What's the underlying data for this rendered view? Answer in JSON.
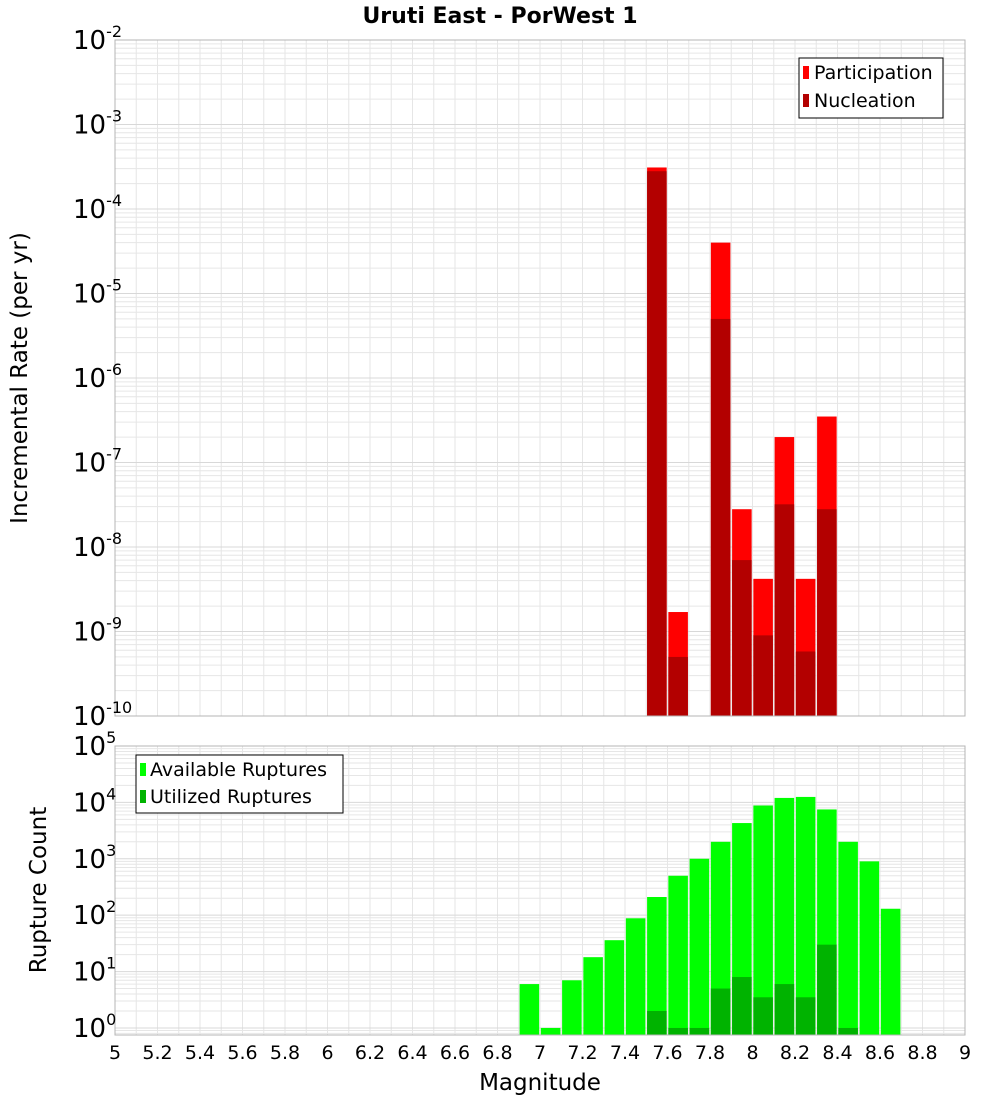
{
  "title": "Uruti East - PorWest 1",
  "colors": {
    "participation": "#ff0000",
    "nucleation": "#b30000",
    "available": "#00ff00",
    "utilized": "#00b300",
    "grid": "#e6e6e6",
    "frame": "#b4b4b4"
  },
  "chart_data": [
    {
      "type": "bar",
      "title": "Uruti East - PorWest 1",
      "ylabel": "Incremental Rate (per yr)",
      "yscale": "log",
      "ylim": [
        1e-10,
        0.01
      ],
      "xlim": [
        5,
        9
      ],
      "grid": true,
      "legend_position": "top-right",
      "x": [
        7.55,
        7.65,
        7.85,
        7.95,
        8.05,
        8.15,
        8.25,
        8.35
      ],
      "series": [
        {
          "name": "Participation",
          "values": [
            0.00031,
            1.7e-09,
            4e-05,
            2.8e-08,
            4.2e-09,
            2e-07,
            4.2e-09,
            3.5e-07
          ]
        },
        {
          "name": "Nucleation",
          "values": [
            0.00028,
            5e-10,
            5e-06,
            7e-09,
            9e-10,
            3.2e-08,
            5.8e-10,
            2.8e-08
          ]
        }
      ]
    },
    {
      "type": "bar",
      "xlabel": "Magnitude",
      "ylabel": "Rupture Count",
      "yscale": "log",
      "ylim": [
        0.75,
        100000
      ],
      "xlim": [
        5,
        9
      ],
      "grid": true,
      "legend_position": "top-left",
      "x": [
        6.95,
        7.05,
        7.15,
        7.25,
        7.35,
        7.45,
        7.55,
        7.65,
        7.75,
        7.85,
        7.95,
        8.05,
        8.15,
        8.25,
        8.35,
        8.45,
        8.55,
        8.65
      ],
      "series": [
        {
          "name": "Available Ruptures",
          "values": [
            6,
            1,
            7,
            18,
            36,
            88,
            210,
            500,
            1000,
            2000,
            4300,
            8800,
            12000,
            12500,
            7500,
            2000,
            900,
            130
          ]
        },
        {
          "name": "Utilized Ruptures",
          "values": [
            0,
            0,
            0,
            0,
            0,
            0,
            2,
            1,
            1,
            5,
            8,
            3.5,
            6,
            3.5,
            30,
            1,
            0,
            0
          ]
        }
      ]
    }
  ],
  "x_ticks": [
    "5",
    "5.2",
    "5.4",
    "5.6",
    "5.8",
    "6",
    "6.2",
    "6.4",
    "6.6",
    "6.8",
    "7",
    "7.2",
    "7.4",
    "7.6",
    "7.8",
    "8",
    "8.2",
    "8.4",
    "8.6",
    "8.8",
    "9"
  ],
  "top_y_ticks": [
    {
      "base": "10",
      "exp": "-2",
      "value": 0.01
    },
    {
      "base": "10",
      "exp": "-3",
      "value": 0.001
    },
    {
      "base": "10",
      "exp": "-4",
      "value": 0.0001
    },
    {
      "base": "10",
      "exp": "-5",
      "value": 1e-05
    },
    {
      "base": "10",
      "exp": "-6",
      "value": 1e-06
    },
    {
      "base": "10",
      "exp": "-7",
      "value": 1e-07
    },
    {
      "base": "10",
      "exp": "-8",
      "value": 1e-08
    },
    {
      "base": "10",
      "exp": "-9",
      "value": 1e-09
    },
    {
      "base": "10",
      "exp": "-10",
      "value": 1e-10
    }
  ],
  "bottom_y_ticks": [
    {
      "base": "10",
      "exp": "5",
      "value": 100000
    },
    {
      "base": "10",
      "exp": "4",
      "value": 10000
    },
    {
      "base": "10",
      "exp": "3",
      "value": 1000
    },
    {
      "base": "10",
      "exp": "2",
      "value": 100
    },
    {
      "base": "10",
      "exp": "1",
      "value": 10
    },
    {
      "base": "10",
      "exp": "0",
      "value": 1
    }
  ]
}
